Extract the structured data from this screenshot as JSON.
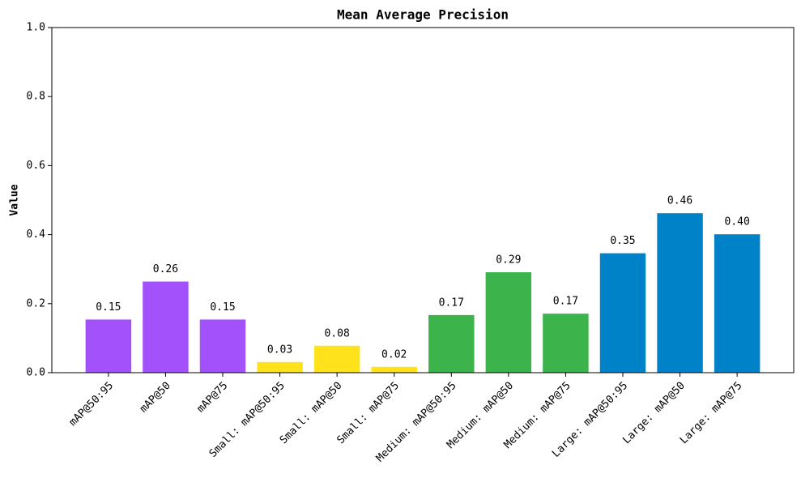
{
  "chart_data": {
    "type": "bar",
    "title": "Mean Average Precision",
    "y_label": "Value",
    "categories": [
      "mAP@50:95",
      "mAP@50",
      "mAP@75",
      "Small: mAP@50:95",
      "Small: mAP@50",
      "Small: mAP@75",
      "Medium: mAP@50:95",
      "Medium: mAP@50",
      "Medium: mAP@75",
      "Large: mAP@50:95",
      "Large: mAP@50",
      "Large: mAP@75"
    ],
    "values": [
      0.154,
      0.264,
      0.154,
      0.031,
      0.078,
      0.017,
      0.167,
      0.291,
      0.171,
      0.346,
      0.462,
      0.401
    ],
    "value_labels": [
      "0.15",
      "0.26",
      "0.15",
      "0.03",
      "0.08",
      "0.02",
      "0.17",
      "0.29",
      "0.17",
      "0.35",
      "0.46",
      "0.40"
    ],
    "colors": [
      "#a351fa",
      "#a351fa",
      "#a351fa",
      "#fde21c",
      "#fde21c",
      "#fde21c",
      "#3cb44b",
      "#3cb44b",
      "#3cb44b",
      "#0082c8",
      "#0082c8",
      "#0082c8"
    ],
    "ylim": [
      0,
      1
    ],
    "yticks": [
      {
        "value": 0,
        "label": "0.0"
      },
      0.2,
      0.4,
      0.6,
      0.8,
      {
        "value": 1,
        "label": "1.0"
      }
    ],
    "grid": false
  }
}
